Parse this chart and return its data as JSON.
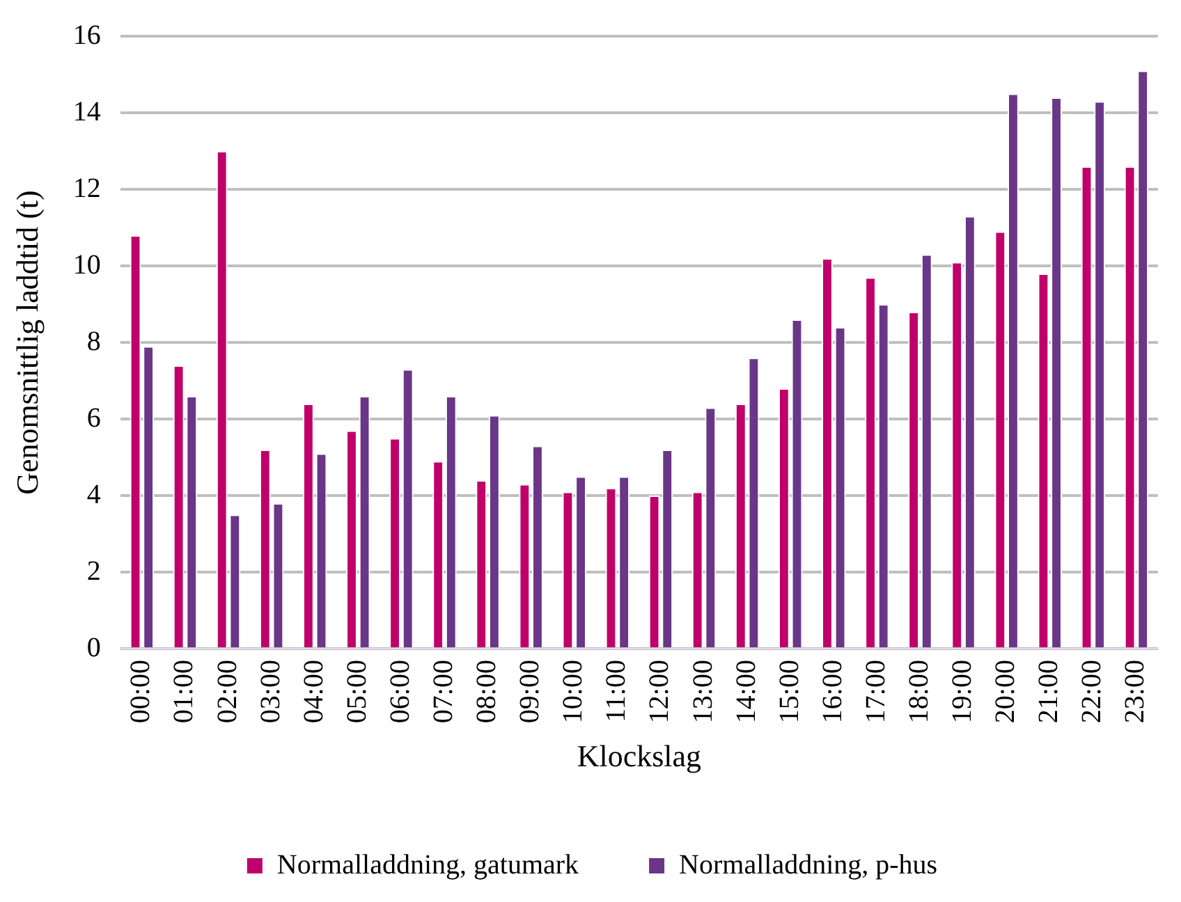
{
  "chart_data": {
    "type": "bar",
    "xlabel": "Klockslag",
    "ylabel": "Genomsnittlig laddtid (t)",
    "categories": [
      "00:00",
      "01:00",
      "02:00",
      "03:00",
      "04:00",
      "05:00",
      "06:00",
      "07:00",
      "08:00",
      "09:00",
      "10:00",
      "11:00",
      "12:00",
      "13:00",
      "14:00",
      "15:00",
      "16:00",
      "17:00",
      "18:00",
      "19:00",
      "20:00",
      "21:00",
      "22:00",
      "23:00"
    ],
    "series": [
      {
        "name": "Normalladdning, gatumark",
        "color": "#c0006a",
        "values": [
          10.8,
          7.4,
          13.0,
          5.2,
          6.4,
          5.7,
          5.5,
          4.9,
          4.4,
          4.3,
          4.1,
          4.2,
          4.0,
          4.1,
          6.4,
          6.8,
          10.2,
          9.7,
          8.8,
          10.1,
          10.9,
          9.8,
          12.6,
          12.6
        ]
      },
      {
        "name": "Normalladdning, p-hus",
        "color": "#6a3687",
        "values": [
          7.9,
          6.6,
          3.5,
          3.8,
          5.1,
          6.6,
          7.3,
          6.6,
          6.1,
          5.3,
          4.5,
          4.5,
          5.2,
          6.3,
          7.6,
          8.6,
          8.4,
          9.0,
          10.3,
          11.3,
          14.5,
          14.4,
          14.3,
          15.1
        ]
      }
    ],
    "ylim": [
      0,
      16
    ],
    "yticks": [
      0,
      2,
      4,
      6,
      8,
      10,
      12,
      14,
      16
    ],
    "grid": "y",
    "legend": "bottom"
  }
}
